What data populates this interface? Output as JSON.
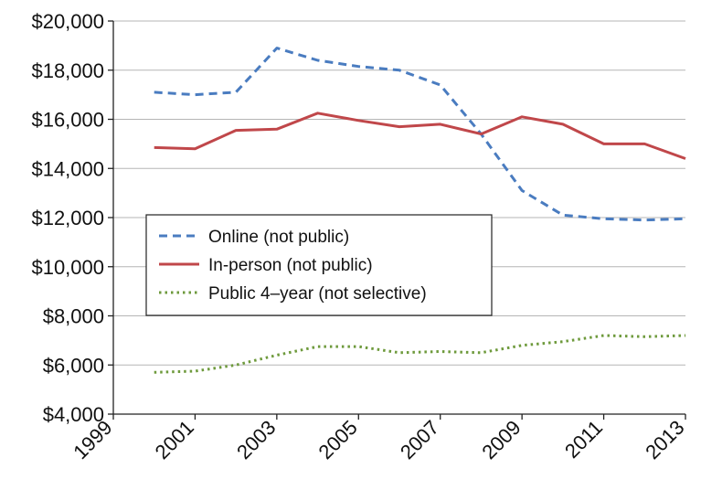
{
  "chart_data": {
    "type": "line",
    "x": [
      2000,
      2001,
      2002,
      2003,
      2004,
      2005,
      2006,
      2007,
      2008,
      2009,
      2010,
      2011,
      2012,
      2013
    ],
    "xlim": [
      1999,
      2013
    ],
    "xticks": [
      1999,
      2001,
      2003,
      2005,
      2007,
      2009,
      2011,
      2013
    ],
    "xtick_labels": [
      "1999",
      "2001",
      "2003",
      "2005",
      "2007",
      "2009",
      "2011",
      "2013"
    ],
    "ylim": [
      4000,
      20000
    ],
    "yticks": [
      4000,
      6000,
      8000,
      10000,
      12000,
      14000,
      16000,
      18000,
      20000
    ],
    "ytick_labels": [
      "$4,000",
      "$6,000",
      "$8,000",
      "$10,000",
      "$12,000",
      "$14,000",
      "$16,000",
      "$18,000",
      "$20,000"
    ],
    "grid": "horizontal",
    "legend": "center-left",
    "series": [
      {
        "name": "Online (not public)",
        "color": "#4a7cc0",
        "style": "dashed",
        "values": [
          17100,
          17000,
          17100,
          18900,
          18400,
          18150,
          18000,
          17400,
          15400,
          13100,
          12100,
          11950,
          11900,
          11950
        ]
      },
      {
        "name": "In-person (not public)",
        "color": "#c0474a",
        "style": "solid",
        "values": [
          14850,
          14800,
          15550,
          15600,
          16250,
          15950,
          15700,
          15800,
          15400,
          16100,
          15800,
          15000,
          15000,
          14400
        ]
      },
      {
        "name": "Public 4–year (not selective)",
        "color": "#6e9a3c",
        "style": "dotted",
        "values": [
          5700,
          5750,
          6000,
          6400,
          6750,
          6750,
          6500,
          6550,
          6500,
          6800,
          6950,
          7200,
          7150,
          7200
        ]
      }
    ]
  }
}
